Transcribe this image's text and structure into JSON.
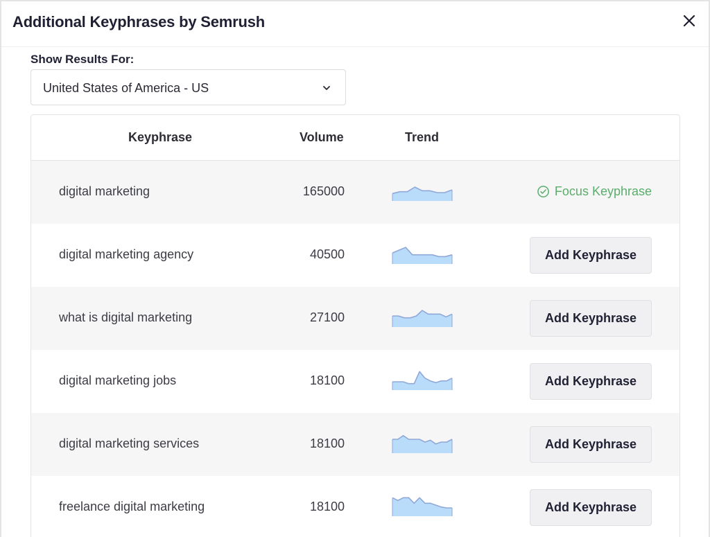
{
  "modal": {
    "title": "Additional Keyphrases by Semrush",
    "close_icon": "close-icon"
  },
  "filter": {
    "label": "Show Results For:",
    "selected": "United States of America - US",
    "chevron_icon": "chevron-down-icon"
  },
  "table": {
    "headers": {
      "keyphrase": "Keyphrase",
      "volume": "Volume",
      "trend": "Trend",
      "action": ""
    },
    "rows": [
      {
        "keyphrase": "digital marketing",
        "volume": "165000",
        "action": "Focus Keyphrase",
        "is_focus": true,
        "trend": [
          8,
          10,
          10,
          15,
          11,
          11,
          9,
          9,
          12
        ]
      },
      {
        "keyphrase": "digital marketing agency",
        "volume": "40500",
        "action": "Add Keyphrase",
        "is_focus": false,
        "trend": [
          12,
          15,
          18,
          10,
          10,
          10,
          10,
          8,
          8,
          10
        ]
      },
      {
        "keyphrase": "what is digital marketing",
        "volume": "27100",
        "action": "Add Keyphrase",
        "is_focus": false,
        "trend": [
          12,
          12,
          10,
          10,
          12,
          18,
          14,
          14,
          14,
          11,
          14
        ]
      },
      {
        "keyphrase": "digital marketing jobs",
        "volume": "18100",
        "action": "Add Keyphrase",
        "is_focus": false,
        "trend": [
          9,
          9,
          9,
          7,
          7,
          20,
          13,
          10,
          8,
          10,
          10,
          13
        ]
      },
      {
        "keyphrase": "digital marketing services",
        "volume": "18100",
        "action": "Add Keyphrase",
        "is_focus": false,
        "trend": [
          15,
          15,
          19,
          15,
          15,
          15,
          12,
          14,
          10,
          12,
          12,
          15
        ]
      },
      {
        "keyphrase": "freelance digital marketing",
        "volume": "18100",
        "action": "Add Keyphrase",
        "is_focus": false,
        "trend": [
          20,
          17,
          20,
          20,
          14,
          20,
          14,
          14,
          12,
          10,
          9,
          9
        ]
      }
    ]
  },
  "colors": {
    "focus_green": "#5aad6b",
    "trend_fill": "#b8dcfa",
    "trend_line": "#8fa8d8",
    "button_bg": "#f0f0f2",
    "row_alt_bg": "#f6f6f6"
  }
}
